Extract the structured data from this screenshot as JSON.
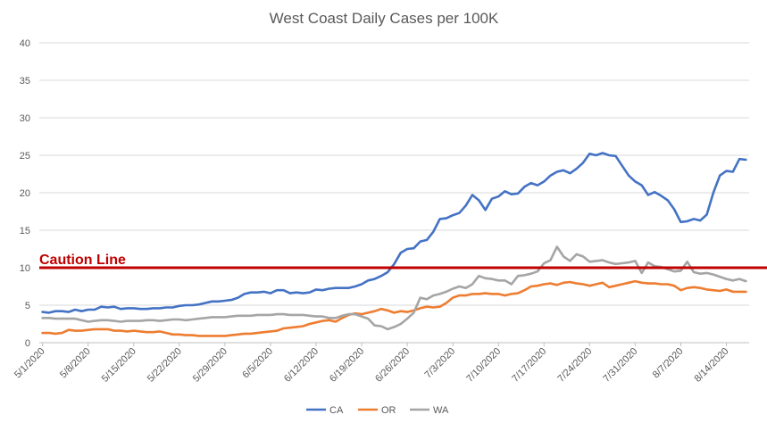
{
  "chart_data": {
    "type": "line",
    "title": "West Coast Daily Cases per 100K",
    "xlabel": "",
    "ylabel": "",
    "ylim": [
      0,
      40
    ],
    "yticks": [
      0,
      5,
      10,
      15,
      20,
      25,
      30,
      35,
      40
    ],
    "grid": true,
    "legend_position": "bottom",
    "xtick_labels": [
      "5/1/2020",
      "5/8/2020",
      "5/15/2020",
      "5/22/2020",
      "5/29/2020",
      "6/5/2020",
      "6/12/2020",
      "6/19/2020",
      "6/26/2020",
      "7/3/2020",
      "7/10/2020",
      "7/17/2020",
      "7/24/2020",
      "7/31/2020",
      "8/7/2020",
      "8/14/2020"
    ],
    "x_start": "5/1/2020",
    "reference_line": {
      "label": "Caution Line",
      "value": 10,
      "color": "#c00000"
    },
    "series": [
      {
        "name": "CA",
        "color": "#4472c4",
        "values": [
          4.1,
          4.0,
          4.2,
          4.2,
          4.1,
          4.4,
          4.2,
          4.4,
          4.4,
          4.8,
          4.7,
          4.8,
          4.5,
          4.6,
          4.6,
          4.5,
          4.5,
          4.6,
          4.6,
          4.7,
          4.7,
          4.9,
          5.0,
          5.0,
          5.1,
          5.3,
          5.5,
          5.5,
          5.6,
          5.7,
          6.0,
          6.5,
          6.7,
          6.7,
          6.8,
          6.6,
          7.0,
          7.0,
          6.6,
          6.7,
          6.6,
          6.7,
          7.1,
          7.0,
          7.2,
          7.3,
          7.3,
          7.3,
          7.5,
          7.8,
          8.3,
          8.5,
          8.9,
          9.4,
          10.5,
          12.0,
          12.5,
          12.6,
          13.5,
          13.7,
          14.8,
          16.5,
          16.6,
          17.0,
          17.3,
          18.3,
          19.7,
          19.0,
          17.7,
          19.2,
          19.5,
          20.2,
          19.8,
          19.9,
          20.8,
          21.3,
          21.0,
          21.5,
          22.3,
          22.8,
          23.0,
          22.6,
          23.2,
          24.0,
          25.2,
          25.0,
          25.3,
          25.0,
          24.9,
          23.6,
          22.3,
          21.5,
          21.0,
          19.7,
          20.1,
          19.6,
          19.0,
          17.8,
          16.1,
          16.2,
          16.5,
          16.3,
          17.1,
          20.0,
          22.3,
          22.9,
          22.8,
          24.5,
          24.4
        ]
      },
      {
        "name": "OR",
        "color": "#ed7d31",
        "values": [
          1.3,
          1.3,
          1.2,
          1.3,
          1.7,
          1.6,
          1.6,
          1.7,
          1.8,
          1.8,
          1.8,
          1.6,
          1.6,
          1.5,
          1.6,
          1.5,
          1.4,
          1.4,
          1.5,
          1.3,
          1.1,
          1.1,
          1.0,
          1.0,
          0.9,
          0.9,
          0.9,
          0.9,
          0.9,
          1.0,
          1.1,
          1.2,
          1.2,
          1.3,
          1.4,
          1.5,
          1.6,
          1.9,
          2.0,
          2.1,
          2.2,
          2.5,
          2.7,
          2.9,
          3.0,
          2.8,
          3.3,
          3.7,
          3.9,
          3.8,
          4.0,
          4.2,
          4.5,
          4.3,
          4.0,
          4.2,
          4.1,
          4.3,
          4.6,
          4.8,
          4.7,
          4.8,
          5.3,
          6.0,
          6.3,
          6.3,
          6.5,
          6.5,
          6.6,
          6.5,
          6.5,
          6.3,
          6.5,
          6.6,
          7.0,
          7.5,
          7.6,
          7.8,
          7.9,
          7.7,
          8.0,
          8.1,
          7.9,
          7.8,
          7.6,
          7.8,
          8.0,
          7.4,
          7.6,
          7.8,
          8.0,
          8.2,
          8.0,
          7.9,
          7.9,
          7.8,
          7.8,
          7.6,
          7.0,
          7.3,
          7.4,
          7.3,
          7.1,
          7.0,
          6.9,
          7.1,
          6.8,
          6.8,
          6.8
        ]
      },
      {
        "name": "WA",
        "color": "#a5a5a5",
        "values": [
          3.3,
          3.3,
          3.2,
          3.2,
          3.2,
          3.2,
          3.0,
          2.8,
          2.9,
          3.0,
          3.0,
          2.9,
          2.8,
          2.9,
          2.9,
          2.9,
          3.0,
          3.0,
          2.9,
          3.0,
          3.1,
          3.1,
          3.0,
          3.1,
          3.2,
          3.3,
          3.4,
          3.4,
          3.4,
          3.5,
          3.6,
          3.6,
          3.6,
          3.7,
          3.7,
          3.7,
          3.8,
          3.8,
          3.7,
          3.7,
          3.7,
          3.6,
          3.5,
          3.5,
          3.3,
          3.3,
          3.6,
          3.8,
          3.8,
          3.5,
          3.2,
          2.3,
          2.2,
          1.8,
          2.1,
          2.5,
          3.2,
          4.0,
          6.0,
          5.8,
          6.3,
          6.5,
          6.8,
          7.2,
          7.5,
          7.3,
          7.8,
          8.9,
          8.6,
          8.5,
          8.3,
          8.3,
          7.8,
          8.9,
          9.0,
          9.2,
          9.5,
          10.6,
          11.0,
          12.8,
          11.5,
          10.9,
          11.8,
          11.5,
          10.8,
          10.9,
          11.0,
          10.7,
          10.5,
          10.6,
          10.7,
          10.9,
          9.3,
          10.7,
          10.2,
          10.1,
          9.8,
          9.5,
          9.6,
          10.8,
          9.4,
          9.2,
          9.3,
          9.1,
          8.8,
          8.5,
          8.3,
          8.5,
          8.2
        ]
      }
    ]
  }
}
